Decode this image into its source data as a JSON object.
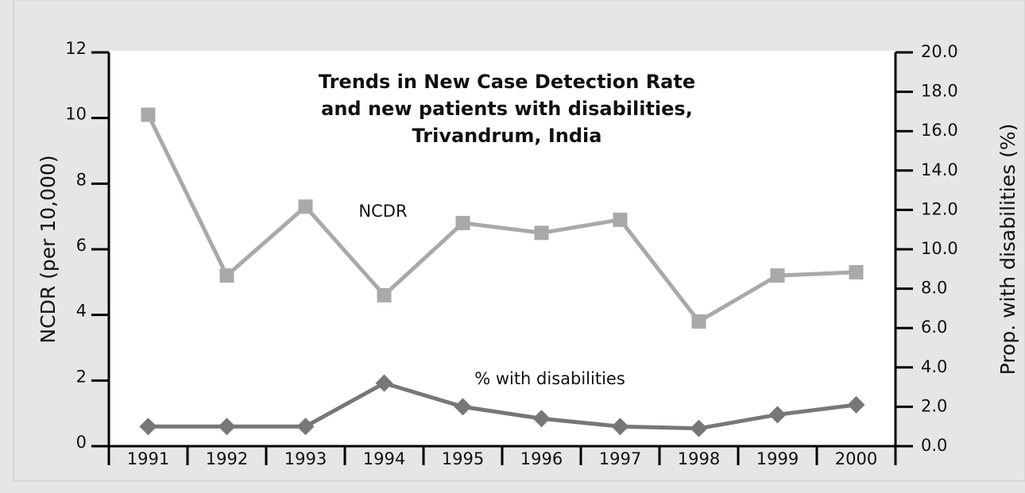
{
  "chart_data": {
    "type": "line",
    "title": [
      "Trends in New Case Detection Rate",
      "and new patients with disabilities,",
      "Trivandrum, India"
    ],
    "y_label": "NCDR (per 10,000)",
    "y2_label": "Prop. with disabilities (%)",
    "categories": [
      "1991",
      "1992",
      "1993",
      "1994",
      "1995",
      "1996",
      "1997",
      "1998",
      "1999",
      "2000"
    ],
    "series": [
      {
        "name": "NCDR",
        "color": "#a9a9a9",
        "marker": "square",
        "values": [
          10.1,
          5.2,
          7.3,
          4.6,
          6.8,
          6.5,
          6.9,
          3.8,
          5.2,
          5.3
        ]
      },
      {
        "name": "% with disabilities",
        "color": "#777777",
        "marker": "diamond",
        "axis": "y2",
        "values": [
          1.0,
          1.0,
          1.0,
          3.2,
          2.0,
          1.4,
          1.0,
          0.9,
          1.6,
          2.1
        ]
      }
    ],
    "ylim": [
      0,
      12
    ],
    "yticks": [
      0,
      2,
      4,
      6,
      8,
      10,
      12
    ],
    "y2lim": [
      0,
      20
    ],
    "y2ticks": [
      {
        "value": 0,
        "label": "0.0"
      },
      {
        "value": 2,
        "label": "2.0"
      },
      {
        "value": 4,
        "label": "4.0"
      },
      {
        "value": 6,
        "label": "6.0"
      },
      {
        "value": 8,
        "label": "8.0"
      },
      {
        "value": 10,
        "label": "10.0"
      },
      {
        "value": 12,
        "label": "12.0"
      },
      {
        "value": 14,
        "label": "14.0"
      },
      {
        "value": 16,
        "label": "16.0"
      },
      {
        "value": 18,
        "label": "18.0"
      },
      {
        "value": 20,
        "label": "20.0"
      }
    ]
  }
}
